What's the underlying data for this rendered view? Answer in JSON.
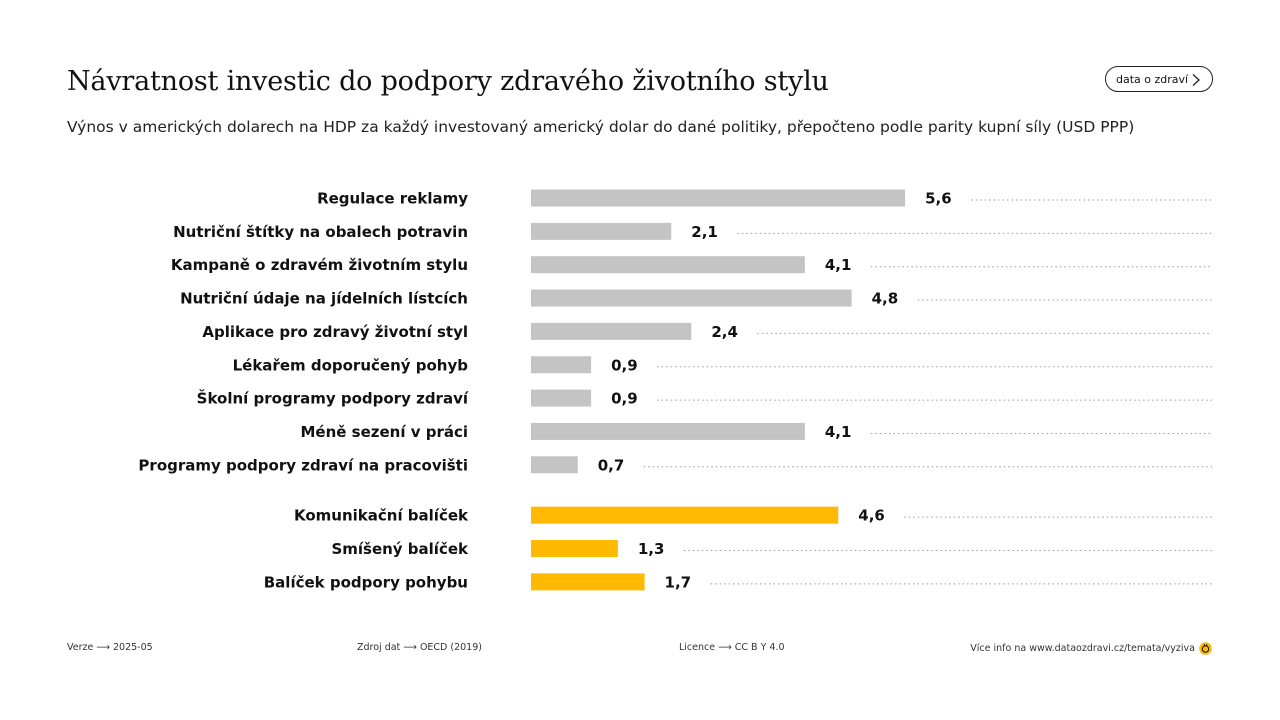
{
  "header": {
    "title": "Návratnost investic do podpory zdravého životního stylu",
    "subtitle": "Výnos v amerických dolarech na HDP za každý investovaný americký dolar do dané politiky, přepočteno podle parity kupní síly (USD PPP)",
    "link_label": "data o zdraví"
  },
  "chart_data": {
    "type": "bar",
    "orientation": "horizontal",
    "categories": [
      "Regulace reklamy",
      "Nutriční štítky na obalech potravin",
      "Kampaně o zdravém životním stylu",
      "Nutriční údaje na jídelních lístcích",
      "Aplikace pro zdravý životní styl",
      "Lékařem doporučený pohyb",
      "Školní programy podpory zdraví",
      "Méně sezení v práci",
      "Programy podpory zdraví na pracovišti",
      "Komunikační balíček",
      "Smíšený balíček",
      "Balíček podpory pohybu"
    ],
    "values": [
      5.6,
      2.1,
      4.1,
      4.8,
      2.4,
      0.9,
      0.9,
      4.1,
      0.7,
      4.6,
      1.3,
      1.7
    ],
    "value_labels": [
      "5,6",
      "2,1",
      "4,1",
      "4,8",
      "2,4",
      "0,9",
      "0,9",
      "4,1",
      "0,7",
      "4,6",
      "1,3",
      "1,7"
    ],
    "group": [
      "single",
      "single",
      "single",
      "single",
      "single",
      "single",
      "single",
      "single",
      "single",
      "package",
      "package",
      "package"
    ],
    "colors": {
      "single": "#c4c4c4",
      "package": "#ffba00",
      "leader": "#9a9a9a"
    },
    "grid": false,
    "legend": "none"
  },
  "footer": {
    "version": "Verze ⟶ 2025-05",
    "source": "Zdroj dat ⟶ OECD (2019)",
    "license": "Licence ⟶ CC B Y 4.0",
    "more_info": "Více info na www.dataozdravi.cz/temata/vyziva"
  }
}
